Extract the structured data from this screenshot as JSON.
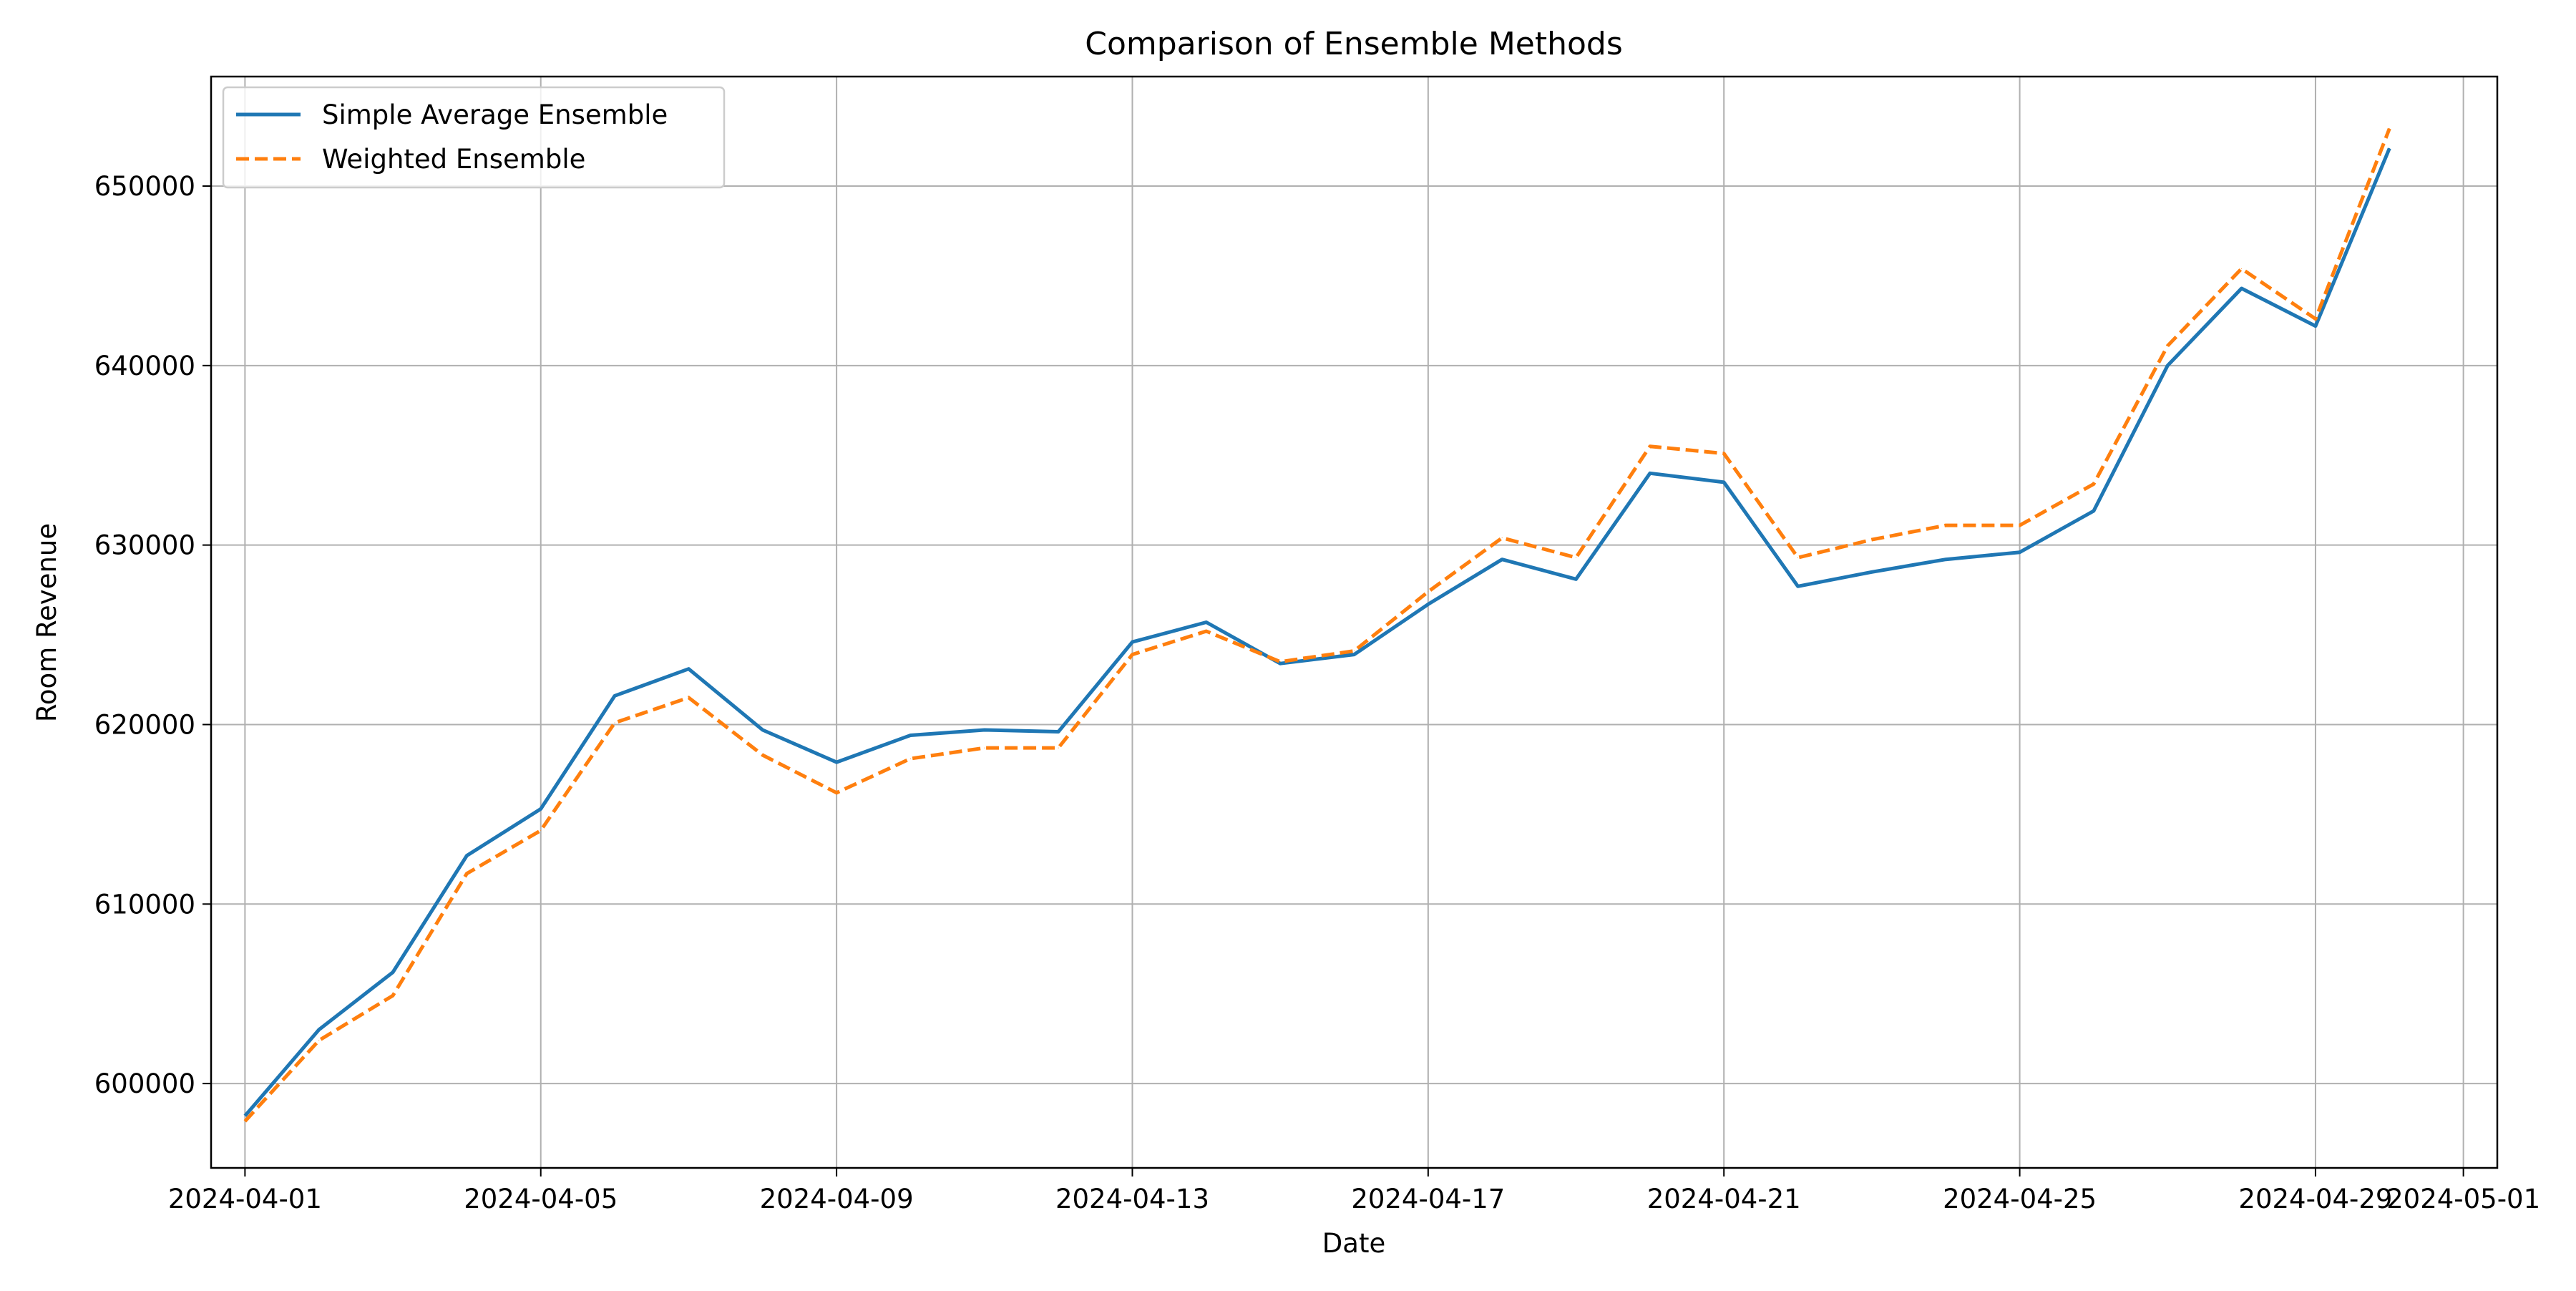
{
  "chart_data": {
    "type": "line",
    "title": "Comparison of Ensemble Methods",
    "xlabel": "Date",
    "ylabel": "Room Revenue",
    "x": [
      "2024-04-01",
      "2024-04-02",
      "2024-04-03",
      "2024-04-04",
      "2024-04-05",
      "2024-04-06",
      "2024-04-07",
      "2024-04-08",
      "2024-04-09",
      "2024-04-10",
      "2024-04-11",
      "2024-04-12",
      "2024-04-13",
      "2024-04-14",
      "2024-04-15",
      "2024-04-16",
      "2024-04-17",
      "2024-04-18",
      "2024-04-19",
      "2024-04-20",
      "2024-04-21",
      "2024-04-22",
      "2024-04-23",
      "2024-04-24",
      "2024-04-25",
      "2024-04-26",
      "2024-04-27",
      "2024-04-28",
      "2024-04-29",
      "2024-04-30"
    ],
    "series": [
      {
        "name": "Simple Average Ensemble",
        "color": "#1f77b4",
        "style": "solid",
        "values": [
          598200,
          603000,
          606200,
          612700,
          615300,
          621600,
          623100,
          619700,
          617900,
          619400,
          619700,
          619600,
          624600,
          625700,
          623400,
          623900,
          626700,
          629200,
          628100,
          634000,
          633500,
          627700,
          628500,
          629200,
          629600,
          631900,
          640000,
          644300,
          642200,
          652100
        ]
      },
      {
        "name": "Weighted Ensemble",
        "color": "#ff7f0e",
        "style": "dashed",
        "values": [
          597900,
          602400,
          604900,
          611700,
          614100,
          620100,
          621500,
          618300,
          616200,
          618100,
          618700,
          618700,
          623900,
          625200,
          623500,
          624100,
          627400,
          630400,
          629300,
          635500,
          635100,
          629300,
          630300,
          631100,
          631100,
          633400,
          641100,
          645400,
          642600,
          653200
        ]
      }
    ],
    "xlim": [
      "2024-03-31T13:00",
      "2024-05-01T11:00"
    ],
    "ylim": [
      595300,
      656100
    ],
    "x_ticks": [
      "2024-04-01",
      "2024-04-05",
      "2024-04-09",
      "2024-04-13",
      "2024-04-17",
      "2024-04-21",
      "2024-04-25",
      "2024-04-29",
      "2024-05-01"
    ],
    "y_ticks": [
      600000,
      610000,
      620000,
      630000,
      640000,
      650000
    ],
    "grid": true,
    "legend_position": "top-left"
  }
}
